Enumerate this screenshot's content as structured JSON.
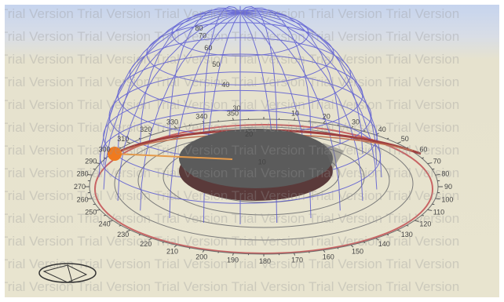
{
  "viewport": {
    "watermark_text": "Trial Version"
  },
  "colors": {
    "sky_top": "#c6d4ee",
    "ground": "#e8e4cf",
    "dome_lines": "#5a5ad2",
    "sun": "#f07a1e",
    "sun_ray": "#e59a4a",
    "building_top": "#5b5b5b",
    "building_side": "#5a3a3a"
  },
  "icons": {
    "sun": "sun-marker-icon",
    "navigation": "orbit-navigation-icon"
  },
  "compass": {
    "azimuth_labels": [
      "10",
      "20",
      "30",
      "40",
      "50",
      "60",
      "70",
      "80",
      "90",
      "100",
      "110",
      "120",
      "130",
      "140",
      "150",
      "160",
      "170",
      "180",
      "190",
      "200",
      "210",
      "220",
      "230",
      "240",
      "250",
      "260",
      "270",
      "280",
      "290",
      "300",
      "310",
      "320",
      "330",
      "340",
      "350"
    ]
  },
  "dome": {
    "altitude_labels": [
      "10",
      "20",
      "30",
      "40",
      "50",
      "60",
      "70",
      "80"
    ]
  }
}
